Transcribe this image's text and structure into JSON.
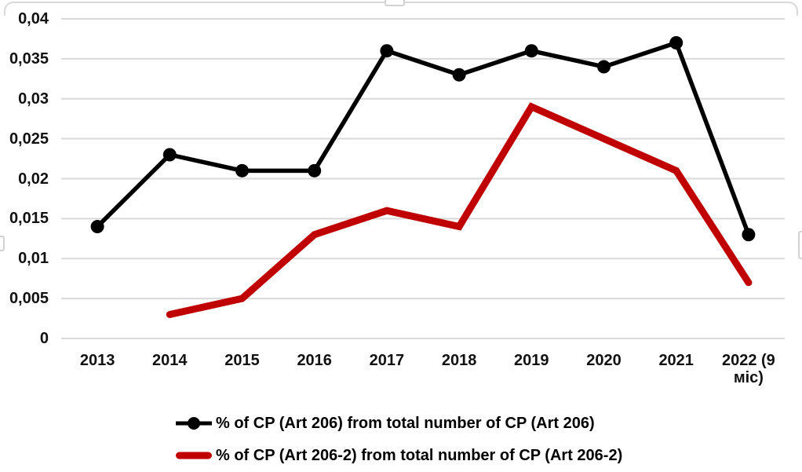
{
  "chart_data": {
    "type": "line",
    "categories": [
      "2013",
      "2014",
      "2015",
      "2016",
      "2017",
      "2018",
      "2019",
      "2020",
      "2021",
      "2022 (9 міс)"
    ],
    "series": [
      {
        "name": "% of CP (Art 206) from total number of CP (Art 206)",
        "color": "#000000",
        "marker": "circle",
        "line_width": 5.5,
        "marker_radius": 8.5,
        "values": [
          0.014,
          0.023,
          0.021,
          0.021,
          0.036,
          0.033,
          0.036,
          0.034,
          0.037,
          0.013
        ]
      },
      {
        "name": "% of CP (Art 206-2) from total number of CP (Art 206-2)",
        "color": "#c00000",
        "marker": "none",
        "line_width": 9,
        "marker_radius": 0,
        "values": [
          null,
          0.003,
          0.005,
          0.013,
          0.016,
          0.014,
          0.029,
          0.025,
          0.021,
          0.007
        ]
      }
    ],
    "title": "",
    "xlabel": "",
    "ylabel": "",
    "ylim": [
      0,
      0.04
    ],
    "ytick_step": 0.005,
    "ytick_labels_top_to_bottom": [
      "0,04",
      "0,035",
      "0,03",
      "0,025",
      "0,02",
      "0,015",
      "0,01",
      "0,005",
      "0"
    ],
    "decimal_separator": ",",
    "grid": true,
    "gridline_color": "#d9d9d9",
    "legend_position": "bottom-left"
  },
  "legend": {
    "items": [
      {
        "label": "% of CP (Art 206) from total number of CP (Art 206)",
        "marker": "line-with-circle",
        "color": "#000000"
      },
      {
        "label": "% of CP (Art 206-2) from total number of CP (Art 206-2)",
        "marker": "thick-line",
        "color": "#c00000"
      }
    ]
  }
}
